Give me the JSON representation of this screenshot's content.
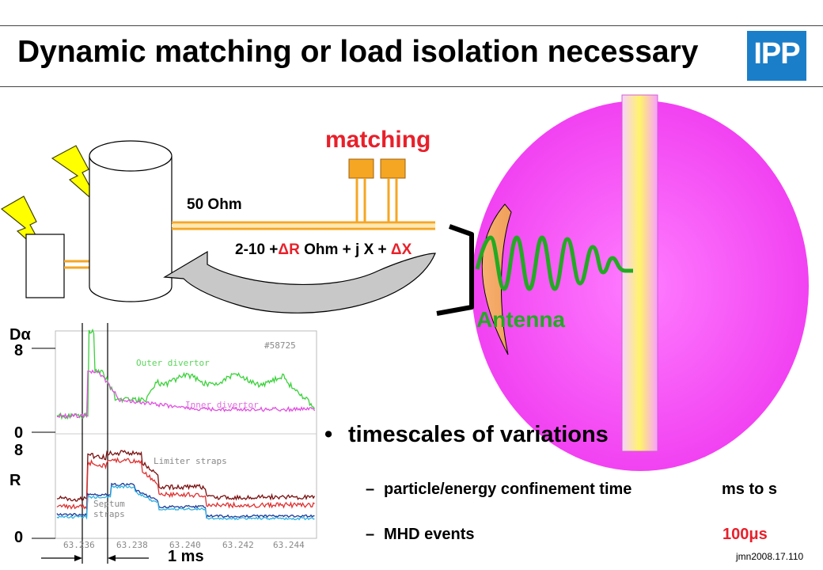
{
  "title": "Dynamic matching or load isolation necessary",
  "logo_text": "IPP",
  "diagram": {
    "matching_label": "matching",
    "ohm50_label": "50 Ohm",
    "impedance_label": {
      "part1": "2-10 +",
      "delta1": "ΔR",
      "part2": " Ohm + j X + ",
      "delta2": "ΔX"
    },
    "antenna_label": "Antenna"
  },
  "plot": {
    "y_label_top": "Dα",
    "y_label_bottom": "R",
    "ticks": {
      "top_max": "8",
      "top_zero": "0",
      "bottom_max": "8",
      "bottom_zero": "0"
    },
    "shot": "#58725",
    "traces": [
      "Outer divertor",
      "Inner divertor",
      "Limiter straps",
      "Septum straps"
    ],
    "x_ticks": [
      "63.236",
      "63.238",
      "63.240",
      "63.242",
      "63.244"
    ],
    "scale_label": "1 ms"
  },
  "bullet": {
    "heading": "timescales of variations",
    "items": [
      {
        "label": "particle/energy confinement time",
        "value": "ms to s"
      },
      {
        "label": "MHD events",
        "value": "100μs"
      }
    ]
  },
  "footer": "jmn2008.17.110",
  "colors": {
    "title_red": "#e8202a",
    "antenna_green": "#22aa22",
    "plasma_magenta": "#f040f0",
    "logo_blue": "#1b7ec9"
  }
}
